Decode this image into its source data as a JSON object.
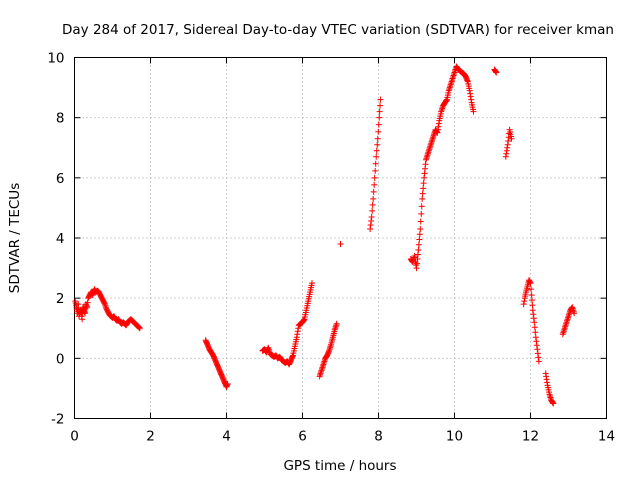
{
  "chart_data": {
    "type": "scatter",
    "title": "Day 284 of 2017, Sidereal Day-to-day VTEC variation (SDTVAR) for receiver kman",
    "xlabel": "GPS time / hours",
    "ylabel": "SDTVAR / TECUs",
    "xlim": [
      0,
      14
    ],
    "ylim": [
      -2,
      10
    ],
    "xticks": [
      0,
      2,
      4,
      6,
      8,
      10,
      12,
      14
    ],
    "yticks": [
      -2,
      0,
      2,
      4,
      6,
      8,
      10
    ],
    "xtick_labels": [
      "0",
      "2",
      "4",
      "6",
      "8",
      "10",
      "12",
      "14"
    ],
    "ytick_labels": [
      "-2",
      "0",
      "2",
      "4",
      "6",
      "8",
      "10"
    ],
    "grid": true,
    "marker": "+",
    "series": [
      {
        "name": "SDTVAR",
        "color": "#ff0000",
        "segments": [
          {
            "x": [
              0.02,
              0.05,
              0.08,
              0.1,
              0.12,
              0.15,
              0.18,
              0.2,
              0.22,
              0.25,
              0.28,
              0.3,
              0.33,
              0.36,
              0.4,
              0.44,
              0.48,
              0.52,
              0.56,
              0.6,
              0.64,
              0.68,
              0.72,
              0.76,
              0.8,
              0.84,
              0.88,
              0.92,
              0.96,
              1.0,
              1.04,
              1.08,
              1.12,
              1.16,
              1.2,
              1.24,
              1.28,
              1.32,
              1.36,
              1.4,
              1.44,
              1.48,
              1.52,
              1.56,
              1.6,
              1.64,
              1.68,
              1.72
            ],
            "y": [
              1.9,
              1.7,
              1.5,
              1.8,
              1.4,
              1.6,
              1.5,
              1.3,
              1.7,
              1.6,
              1.5,
              1.8,
              1.7,
              2.0,
              2.1,
              2.2,
              2.1,
              2.3,
              2.2,
              2.25,
              2.2,
              2.1,
              2.0,
              1.9,
              1.8,
              1.65,
              1.55,
              1.45,
              1.4,
              1.35,
              1.4,
              1.3,
              1.25,
              1.3,
              1.2,
              1.15,
              1.2,
              1.15,
              1.1,
              1.2,
              1.25,
              1.3,
              1.25,
              1.2,
              1.15,
              1.1,
              1.05,
              1.0
            ]
          },
          {
            "x": [
              3.45,
              3.5,
              3.55,
              3.6,
              3.65,
              3.7,
              3.75,
              3.8,
              3.85,
              3.9,
              3.95,
              4.0,
              4.03
            ],
            "y": [
              0.6,
              0.45,
              0.3,
              0.2,
              0.1,
              -0.05,
              -0.2,
              -0.35,
              -0.5,
              -0.65,
              -0.8,
              -0.95,
              -0.85
            ]
          },
          {
            "x": [
              4.95,
              5.0,
              5.05,
              5.1,
              5.15,
              5.2,
              5.25,
              5.3,
              5.35,
              5.4,
              5.45,
              5.5,
              5.55,
              5.6,
              5.65,
              5.7,
              5.75,
              5.8,
              5.85,
              5.9,
              5.95,
              6.0,
              6.05,
              6.1,
              6.15,
              6.2,
              6.25
            ],
            "y": [
              0.25,
              0.3,
              0.2,
              0.35,
              0.15,
              0.1,
              0.05,
              0.1,
              0.0,
              0.05,
              -0.05,
              -0.1,
              -0.15,
              -0.1,
              -0.2,
              -0.05,
              0.1,
              0.4,
              0.7,
              1.1,
              1.15,
              1.2,
              1.3,
              1.6,
              1.9,
              2.2,
              2.5
            ]
          },
          {
            "x": [
              6.45,
              6.5,
              6.55,
              6.6,
              6.65,
              6.7,
              6.75,
              6.8,
              6.85,
              6.9
            ],
            "y": [
              -0.6,
              -0.4,
              -0.2,
              0.0,
              0.1,
              0.25,
              0.45,
              0.7,
              0.95,
              1.15
            ]
          },
          {
            "x": [
              7.0
            ],
            "y": [
              3.8
            ]
          },
          {
            "x": [
              7.78,
              7.82,
              7.86,
              7.9,
              7.94,
              7.98,
              8.02,
              8.05
            ],
            "y": [
              4.3,
              4.7,
              5.3,
              6.0,
              6.7,
              7.3,
              8.0,
              8.6
            ]
          },
          {
            "x": [
              8.85,
              8.9,
              8.95,
              9.0,
              9.05,
              9.1,
              9.15,
              9.2,
              9.25,
              9.3,
              9.35,
              9.4,
              9.45,
              9.5,
              9.55,
              9.6,
              9.65,
              9.7,
              9.75,
              9.8,
              9.85,
              9.9,
              9.95,
              10.0,
              10.05,
              10.1,
              10.15,
              10.2,
              10.25,
              10.3,
              10.35,
              10.4,
              10.45,
              10.5
            ],
            "y": [
              3.3,
              3.2,
              3.4,
              3.0,
              3.6,
              4.3,
              5.3,
              6.0,
              6.6,
              6.8,
              7.0,
              7.2,
              7.4,
              7.6,
              7.5,
              7.9,
              8.2,
              8.4,
              8.5,
              8.6,
              8.9,
              9.1,
              9.3,
              9.5,
              9.7,
              9.6,
              9.55,
              9.5,
              9.45,
              9.35,
              9.2,
              8.9,
              8.5,
              8.2
            ]
          },
          {
            "x": [
              11.05,
              11.1
            ],
            "y": [
              9.6,
              9.5
            ]
          },
          {
            "x": [
              11.35,
              11.4,
              11.45,
              11.5
            ],
            "y": [
              6.7,
              7.1,
              7.6,
              7.3
            ]
          },
          {
            "x": [
              11.82,
              11.85,
              11.88,
              11.92,
              11.96,
              12.0,
              12.03,
              12.06,
              12.1,
              12.14,
              12.18,
              12.22
            ],
            "y": [
              1.8,
              2.0,
              2.2,
              2.4,
              2.6,
              2.5,
              2.1,
              1.6,
              1.2,
              0.7,
              0.3,
              -0.1
            ]
          },
          {
            "x": [
              12.4,
              12.45,
              12.5,
              12.55,
              12.6
            ],
            "y": [
              -0.5,
              -0.9,
              -1.2,
              -1.4,
              -1.5
            ]
          },
          {
            "x": [
              12.85,
              12.9,
              12.95,
              13.0,
              13.05,
              13.1,
              13.15
            ],
            "y": [
              0.8,
              1.0,
              1.2,
              1.4,
              1.6,
              1.7,
              1.5
            ]
          }
        ]
      }
    ]
  }
}
